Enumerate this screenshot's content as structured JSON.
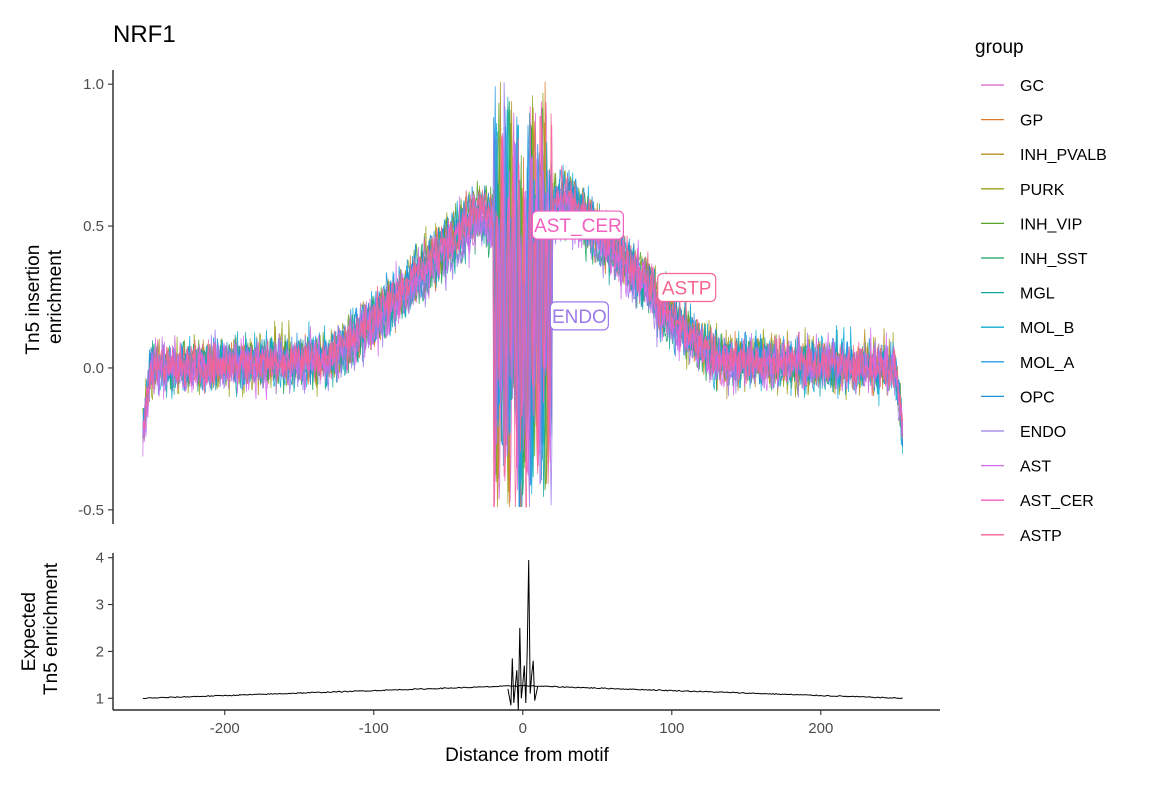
{
  "chart_data": [
    {
      "type": "line",
      "title": "NRF1",
      "xlabel": "",
      "ylabel": [
        "Tn5 insertion",
        "enrichment"
      ],
      "xlim": [
        -275,
        280
      ],
      "ylim": [
        -0.55,
        1.05
      ],
      "yticks": [
        {
          "value": 1.0,
          "label": "1.0"
        },
        {
          "value": 0.5,
          "label": "0.5"
        },
        {
          "value": 0.0,
          "label": "0.0"
        },
        {
          "value": -0.5,
          "label": "-0.5"
        }
      ],
      "x_range": [
        -255,
        255
      ],
      "legend_title": "group",
      "legend_position": "right",
      "series": [
        {
          "name": "GC",
          "color": "#D65FCF"
        },
        {
          "name": "GP",
          "color": "#E07A2E"
        },
        {
          "name": "INH_PVALB",
          "color": "#B89020"
        },
        {
          "name": "PURK",
          "color": "#9AA21C"
        },
        {
          "name": "INH_VIP",
          "color": "#55A32B"
        },
        {
          "name": "INH_SST",
          "color": "#17A55E"
        },
        {
          "name": "MGL",
          "color": "#14A9A4"
        },
        {
          "name": "MOL_B",
          "color": "#10ACD6"
        },
        {
          "name": "MOL_A",
          "color": "#2D9CE8"
        },
        {
          "name": "OPC",
          "color": "#1F8FDB"
        },
        {
          "name": "ENDO",
          "color": "#9B7BEA"
        },
        {
          "name": "AST",
          "color": "#D36BEB"
        },
        {
          "name": "AST_CER",
          "color": "#F25FC0"
        },
        {
          "name": "ASTP",
          "color": "#F5658F"
        }
      ],
      "annotations": [
        {
          "label": "AST_CER",
          "x": 37,
          "y": 0.5,
          "color": "#F25FC0"
        },
        {
          "label": "ASTP",
          "x": 110,
          "y": 0.28,
          "color": "#F5658F"
        },
        {
          "label": "ENDO",
          "x": 38,
          "y": 0.18,
          "color": "#9B7BEA"
        }
      ]
    },
    {
      "type": "line",
      "title": "",
      "xlabel": "Distance from motif",
      "ylabel": [
        "Expected",
        "Tn5 enrichment"
      ],
      "xlim": [
        -275,
        280
      ],
      "ylim": [
        0.75,
        4.1
      ],
      "xticks": [
        {
          "value": -200,
          "label": "-200"
        },
        {
          "value": -100,
          "label": "-100"
        },
        {
          "value": 0,
          "label": "0"
        },
        {
          "value": 100,
          "label": "100"
        },
        {
          "value": 200,
          "label": "200"
        }
      ],
      "yticks": [
        {
          "value": 4,
          "label": "4"
        },
        {
          "value": 3,
          "label": "3"
        },
        {
          "value": 2,
          "label": "2"
        },
        {
          "value": 1,
          "label": "1"
        }
      ],
      "series": [
        {
          "name": "",
          "color": "#000000",
          "profile": {
            "baseline": 1.0,
            "center_level": 1.27,
            "peaks": [
              {
                "x": -7,
                "y": 1.85
              },
              {
                "x": -2,
                "y": 2.5
              },
              {
                "x": 1,
                "y": 1.7
              },
              {
                "x": 4,
                "y": 3.95
              },
              {
                "x": 7,
                "y": 1.8
              }
            ]
          }
        }
      ]
    }
  ]
}
